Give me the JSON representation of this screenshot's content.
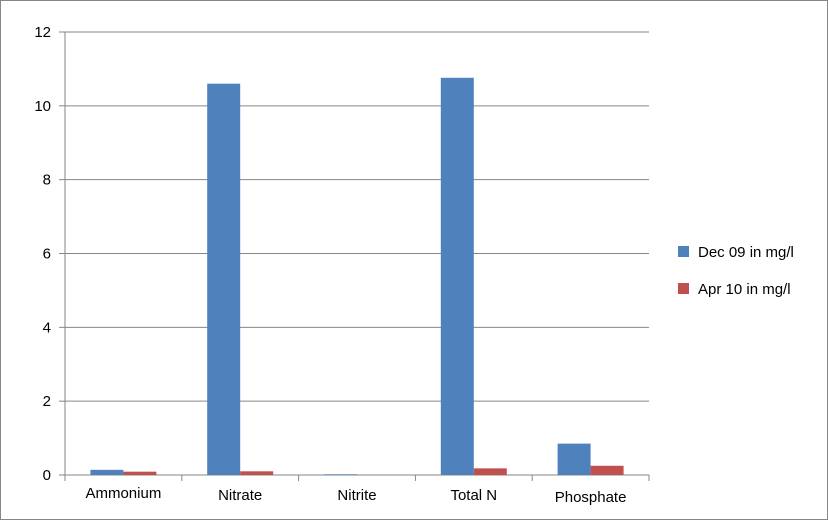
{
  "chart_data": {
    "type": "bar",
    "categories": [
      "Ammonium",
      "Nitrate",
      "Nitrite",
      "Total N",
      "Phosphate"
    ],
    "series": [
      {
        "name": "Dec 09 in mg/l",
        "color": "#4F81BD",
        "values": [
          0.14,
          10.6,
          0.02,
          10.76,
          0.85
        ]
      },
      {
        "name": "Apr 10 in mg/l",
        "color": "#C0504D",
        "values": [
          0.09,
          0.1,
          0.0,
          0.18,
          0.25
        ]
      }
    ],
    "ylim": [
      0,
      12
    ],
    "yticks": [
      0,
      2,
      4,
      6,
      8,
      10,
      12
    ],
    "grid": true,
    "legend": "right"
  }
}
